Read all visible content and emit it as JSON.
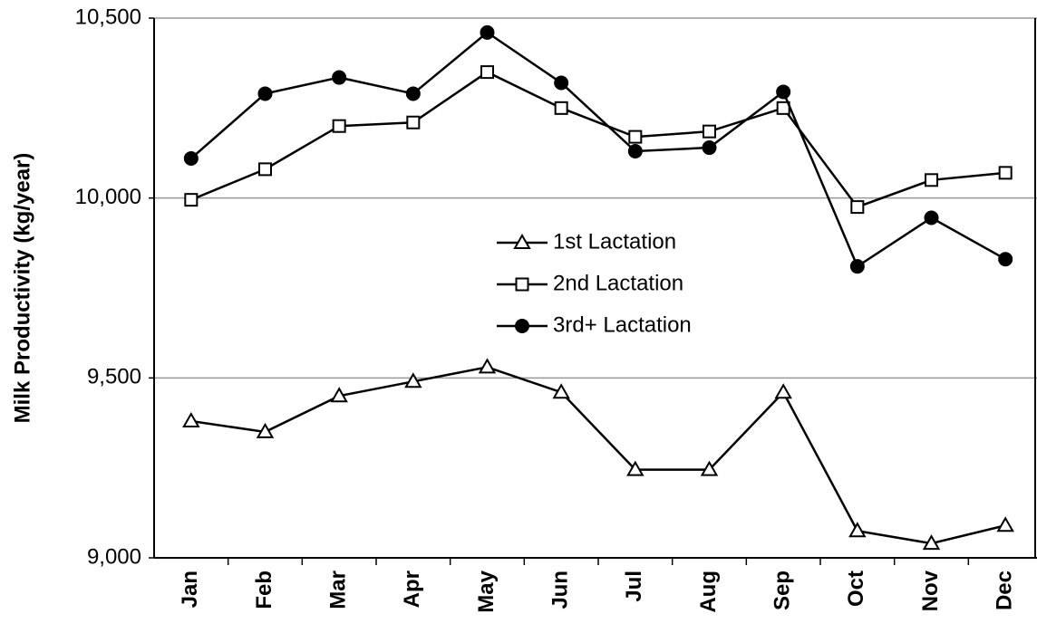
{
  "chart_data": {
    "type": "line",
    "y_label": "Milk Productivity (kg/year)",
    "categories": [
      "Jan",
      "Feb",
      "Mar",
      "Apr",
      "May",
      "Jun",
      "Jul",
      "Aug",
      "Sep",
      "Oct",
      "Nov",
      "Dec"
    ],
    "series": [
      {
        "name": "1st Lactation",
        "color": "#000000",
        "marker": "triangle",
        "marker_fill": "#ffffff",
        "values": [
          9380,
          9350,
          9450,
          9490,
          9530,
          9460,
          9245,
          9245,
          9460,
          9075,
          9040,
          9090
        ]
      },
      {
        "name": "2nd Lactation",
        "color": "#000000",
        "marker": "square",
        "marker_fill": "#ffffff",
        "values": [
          9995,
          10080,
          10200,
          10210,
          10350,
          10250,
          10170,
          10185,
          10250,
          9975,
          10050,
          10070
        ]
      },
      {
        "name": "3rd+ Lactation",
        "color": "#000000",
        "marker": "circle",
        "marker_fill": "#000000",
        "values": [
          10110,
          10290,
          10335,
          10290,
          10460,
          10320,
          10130,
          10140,
          10295,
          9810,
          9945,
          9830
        ]
      }
    ],
    "ylim": [
      9000,
      10500
    ],
    "yticks": [
      {
        "value": 9000,
        "label": "9,000"
      },
      {
        "value": 9500,
        "label": "9,500"
      },
      {
        "value": 10000,
        "label": "10,000"
      },
      {
        "value": 10500,
        "label": "10,500"
      }
    ],
    "grid": true,
    "legend": "center"
  }
}
